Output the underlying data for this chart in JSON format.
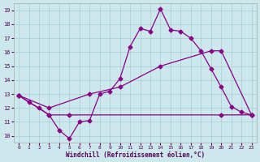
{
  "background_color": "#cce8ed",
  "grid_color": "#aacccc",
  "line_color": "#880088",
  "xlim": [
    -0.5,
    23.5
  ],
  "ylim": [
    9.5,
    19.5
  ],
  "yticks": [
    10,
    11,
    12,
    13,
    14,
    15,
    16,
    17,
    18,
    19
  ],
  "xticks": [
    0,
    1,
    2,
    3,
    4,
    5,
    6,
    7,
    8,
    9,
    10,
    11,
    12,
    13,
    14,
    15,
    16,
    17,
    18,
    19,
    20,
    21,
    22,
    23
  ],
  "xlabel": "Windchill (Refroidissement éolien,°C)",
  "line1_x": [
    0,
    1,
    2,
    3,
    4,
    5,
    6,
    7,
    8,
    9,
    10,
    11,
    12,
    13,
    14,
    15,
    16,
    17,
    18,
    19,
    20,
    21,
    22,
    23
  ],
  "line1_y": [
    12.9,
    12.4,
    12.0,
    11.5,
    10.4,
    9.8,
    11.0,
    11.1,
    13.0,
    13.2,
    14.1,
    16.4,
    17.7,
    17.5,
    19.1,
    17.6,
    17.5,
    17.0,
    16.1,
    14.8,
    13.5,
    12.1,
    11.7,
    11.5
  ],
  "line2_x": [
    0,
    3,
    5,
    20,
    23
  ],
  "line2_y": [
    12.9,
    11.5,
    11.5,
    11.5,
    11.5
  ],
  "line3_x": [
    0,
    3,
    7,
    10,
    14,
    19,
    20,
    23
  ],
  "line3_y": [
    12.9,
    12.0,
    13.0,
    13.5,
    15.0,
    16.1,
    16.1,
    11.5
  ]
}
